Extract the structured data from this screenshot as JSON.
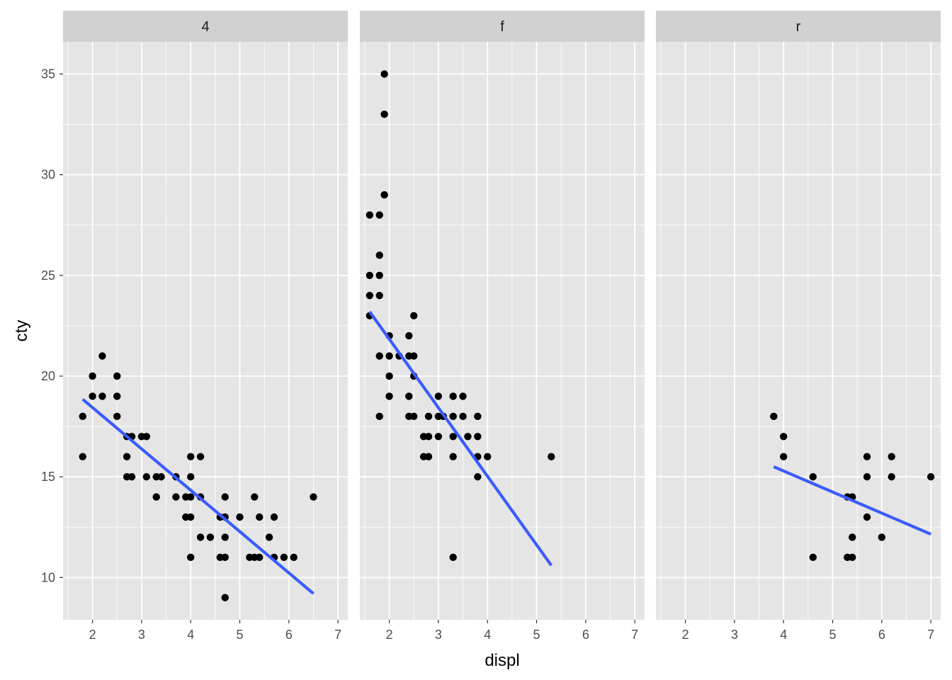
{
  "chart_data": {
    "type": "scatter",
    "facet_variable": "drv",
    "xlabel": "displ",
    "ylabel": "cty",
    "xlim": [
      1.4,
      7.2
    ],
    "ylim": [
      7.9,
      36.6
    ],
    "x_ticks": [
      2,
      3,
      4,
      5,
      6,
      7
    ],
    "y_ticks": [
      10,
      15,
      20,
      25,
      30,
      35
    ],
    "grid": true,
    "colors": {
      "panel_bg": "#e5e5e5",
      "strip_bg": "#d1d1d1",
      "grid": "#ffffff",
      "points": "#000000",
      "smooth_line": "#3a5bff"
    },
    "panels": [
      {
        "label": "4",
        "points": [
          [
            1.8,
            18
          ],
          [
            1.8,
            16
          ],
          [
            2.0,
            20
          ],
          [
            2.0,
            19
          ],
          [
            2.2,
            21
          ],
          [
            2.2,
            19
          ],
          [
            2.5,
            20
          ],
          [
            2.5,
            19
          ],
          [
            2.5,
            18
          ],
          [
            2.7,
            17
          ],
          [
            2.7,
            16
          ],
          [
            2.7,
            15
          ],
          [
            2.8,
            17
          ],
          [
            2.8,
            15
          ],
          [
            3.0,
            17
          ],
          [
            3.1,
            17
          ],
          [
            3.1,
            15
          ],
          [
            3.3,
            15
          ],
          [
            3.3,
            14
          ],
          [
            3.4,
            15
          ],
          [
            3.7,
            15
          ],
          [
            3.7,
            14
          ],
          [
            3.9,
            14
          ],
          [
            3.9,
            13
          ],
          [
            4.0,
            16
          ],
          [
            4.0,
            15
          ],
          [
            4.0,
            14
          ],
          [
            4.0,
            13
          ],
          [
            4.0,
            11
          ],
          [
            4.2,
            16
          ],
          [
            4.2,
            14
          ],
          [
            4.2,
            12
          ],
          [
            4.4,
            12
          ],
          [
            4.6,
            13
          ],
          [
            4.6,
            11
          ],
          [
            4.7,
            14
          ],
          [
            4.7,
            13
          ],
          [
            4.7,
            12
          ],
          [
            4.7,
            11
          ],
          [
            4.7,
            9
          ],
          [
            5.0,
            13
          ],
          [
            5.2,
            11
          ],
          [
            5.3,
            14
          ],
          [
            5.3,
            11
          ],
          [
            5.4,
            13
          ],
          [
            5.4,
            11
          ],
          [
            5.6,
            12
          ],
          [
            5.7,
            13
          ],
          [
            5.7,
            11
          ],
          [
            5.9,
            11
          ],
          [
            6.1,
            11
          ],
          [
            6.5,
            14
          ]
        ],
        "smooth": [
          [
            1.8,
            18.85
          ],
          [
            6.5,
            9.2
          ]
        ]
      },
      {
        "label": "f",
        "points": [
          [
            1.6,
            28
          ],
          [
            1.6,
            25
          ],
          [
            1.6,
            24
          ],
          [
            1.6,
            23
          ],
          [
            1.8,
            28
          ],
          [
            1.8,
            26
          ],
          [
            1.8,
            25
          ],
          [
            1.8,
            24
          ],
          [
            1.8,
            21
          ],
          [
            1.8,
            18
          ],
          [
            1.9,
            35
          ],
          [
            1.9,
            33
          ],
          [
            1.9,
            29
          ],
          [
            2.0,
            22
          ],
          [
            2.0,
            21
          ],
          [
            2.0,
            20
          ],
          [
            2.0,
            19
          ],
          [
            2.2,
            21
          ],
          [
            2.4,
            22
          ],
          [
            2.4,
            21
          ],
          [
            2.4,
            19
          ],
          [
            2.4,
            18
          ],
          [
            2.5,
            23
          ],
          [
            2.5,
            21
          ],
          [
            2.5,
            20
          ],
          [
            2.5,
            18
          ],
          [
            2.7,
            17
          ],
          [
            2.7,
            16
          ],
          [
            2.8,
            18
          ],
          [
            2.8,
            17
          ],
          [
            2.8,
            16
          ],
          [
            3.0,
            19
          ],
          [
            3.0,
            18
          ],
          [
            3.0,
            17
          ],
          [
            3.1,
            18
          ],
          [
            3.3,
            19
          ],
          [
            3.3,
            18
          ],
          [
            3.3,
            17
          ],
          [
            3.3,
            16
          ],
          [
            3.3,
            11
          ],
          [
            3.5,
            19
          ],
          [
            3.5,
            18
          ],
          [
            3.6,
            17
          ],
          [
            3.8,
            18
          ],
          [
            3.8,
            17
          ],
          [
            3.8,
            16
          ],
          [
            3.8,
            15
          ],
          [
            4.0,
            16
          ],
          [
            5.3,
            16
          ]
        ],
        "smooth": [
          [
            1.6,
            23.2
          ],
          [
            5.3,
            10.6
          ]
        ]
      },
      {
        "label": "r",
        "points": [
          [
            3.8,
            18
          ],
          [
            4.0,
            17
          ],
          [
            4.0,
            16
          ],
          [
            4.6,
            15
          ],
          [
            4.6,
            11
          ],
          [
            5.3,
            14
          ],
          [
            5.3,
            11
          ],
          [
            5.4,
            14
          ],
          [
            5.4,
            12
          ],
          [
            5.4,
            11
          ],
          [
            5.7,
            16
          ],
          [
            5.7,
            15
          ],
          [
            5.7,
            13
          ],
          [
            6.0,
            12
          ],
          [
            6.2,
            16
          ],
          [
            6.2,
            15
          ],
          [
            7.0,
            15
          ]
        ],
        "smooth": [
          [
            3.8,
            15.5
          ],
          [
            7.0,
            12.15
          ]
        ]
      }
    ]
  }
}
